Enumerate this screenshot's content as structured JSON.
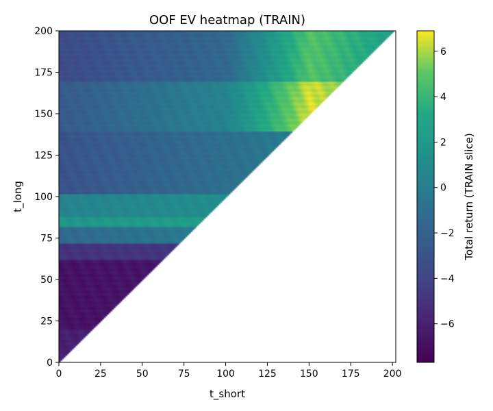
{
  "chart_data": {
    "type": "heatmap",
    "title": "OOF EV heatmap (TRAIN)",
    "xlabel": "t_short",
    "ylabel": "t_long",
    "xlim": [
      0,
      202
    ],
    "ylim": [
      0,
      200
    ],
    "xticks": [
      "0",
      "25",
      "50",
      "75",
      "100",
      "125",
      "150",
      "175",
      "200"
    ],
    "yticks": [
      "0",
      "25",
      "50",
      "75",
      "100",
      "125",
      "150",
      "175",
      "200"
    ],
    "colorbar": {
      "label": "Total return (TRAIN slice)",
      "range": [
        -7.7,
        6.9
      ],
      "ticks": [
        "−6",
        "−4",
        "−2",
        "0",
        "2",
        "4",
        "6"
      ],
      "colormap": "viridis"
    },
    "mask": "cells where t_short > t_long are empty",
    "grid": false,
    "approx_value_profile": {
      "x": [
        0,
        20,
        45,
        60,
        75,
        85,
        100,
        103,
        110,
        130,
        140,
        150,
        160,
        175,
        200
      ],
      "row_bands": [
        {
          "t_long": [
            0,
            20
          ],
          "values": [
            -6.0,
            -6.4
          ]
        },
        {
          "t_long": [
            20,
            62
          ],
          "values": [
            -6.8,
            -6.5,
            -6.0
          ]
        },
        {
          "t_long": [
            62,
            72
          ],
          "values": [
            -5.0,
            -4.6
          ]
        },
        {
          "t_long": [
            72,
            82
          ],
          "values": [
            -1.5,
            -0.5,
            0.5,
            1.5
          ]
        },
        {
          "t_long": [
            82,
            88
          ],
          "values": [
            1.8,
            2.5,
            3.2
          ]
        },
        {
          "t_long": [
            88,
            102
          ],
          "values": [
            0.5,
            1.2,
            2.0
          ]
        },
        {
          "t_long": [
            102,
            140
          ],
          "values": [
            -3.0,
            -2.0,
            -1.0,
            0.0,
            1.5
          ]
        },
        {
          "t_long": [
            140,
            170
          ],
          "values": [
            -2.5,
            -1.0,
            0.5,
            6.5,
            4.0
          ]
        },
        {
          "t_long": [
            170,
            200
          ],
          "values": [
            -3.5,
            -2.5,
            -1.5,
            4.8,
            2.5
          ]
        }
      ]
    }
  }
}
